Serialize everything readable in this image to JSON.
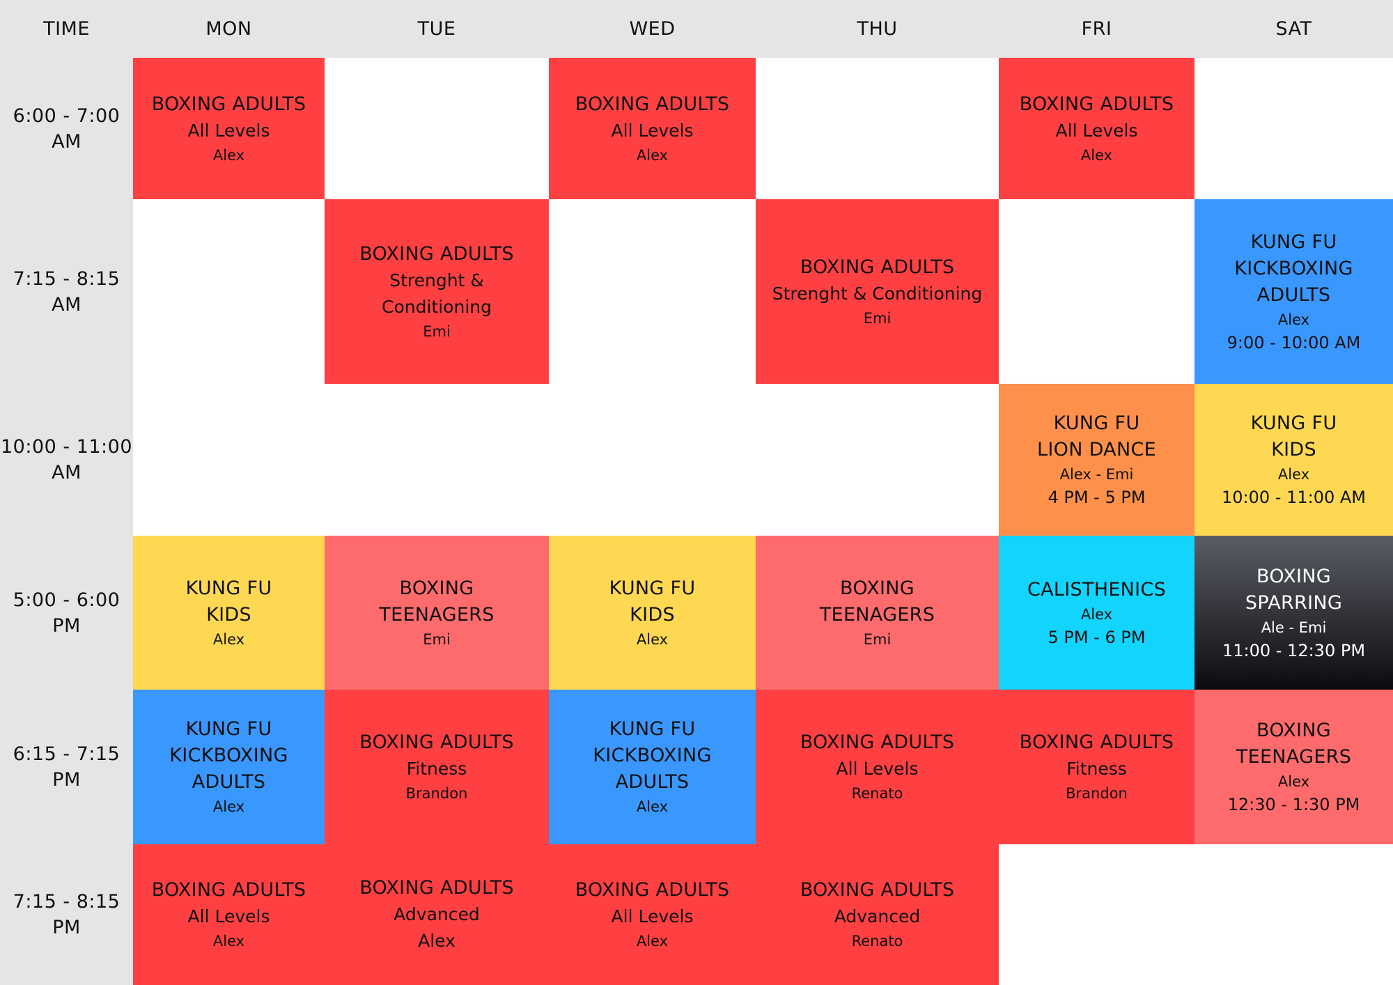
{
  "header": {
    "time_label": "TIME",
    "days": [
      "MON",
      "TUE",
      "WED",
      "THU",
      "FRI",
      "SAT"
    ]
  },
  "time_slots": [
    "6:00 - 7:00\nAM",
    "7:15 - 8:15\nAM",
    "10:00 - 11:00\nAM",
    "5:00 - 6:00\nPM",
    "6:15 - 7:15\nPM",
    "7:15 - 8:15\nPM"
  ],
  "colors": {
    "header_bg": "#e6e4e5",
    "boxing_adults": "#fe4042",
    "boxing_teenagers": "#fe6b6d",
    "kung_fu_kids": "#fed852",
    "kung_fu_kickboxing": "#3a97fd",
    "lion_dance": "#fd904a",
    "calisthenics": "#13d4fc",
    "sparring_top": "#5b5d66",
    "sparring_bottom": "#0c0c0f"
  },
  "classes": {
    "mon_0600": {
      "t1": "BOXING ADULTS",
      "t2": "All Levels",
      "t3": "Alex"
    },
    "wed_0600": {
      "t1": "BOXING ADULTS",
      "t2": "All Levels",
      "t3": "Alex"
    },
    "fri_0600": {
      "t1": "BOXING ADULTS",
      "t2": "All Levels",
      "t3": "Alex"
    },
    "tue_0715": {
      "t1": "BOXING ADULTS",
      "t2": "Strenght &\nConditioning",
      "t3": "Emi"
    },
    "thu_0715": {
      "t1": "BOXING ADULTS",
      "t2": "Strenght & Conditioning",
      "t3": "Emi"
    },
    "sat_0715": {
      "t1": "KUNG FU\nKICKBOXING\nADULTS",
      "t3": "Alex",
      "t4": "9:00 - 10:00 AM"
    },
    "fri_1000": {
      "t1": "KUNG FU\nLION DANCE",
      "t3": "Alex - Emi",
      "t4": "4 PM - 5 PM"
    },
    "sat_1000": {
      "t1": "KUNG FU\nKIDS",
      "t3": "Alex",
      "t4": "10:00 - 11:00 AM"
    },
    "mon_1700": {
      "t1": "KUNG FU\nKIDS",
      "t3": "Alex"
    },
    "tue_1700": {
      "t1": "BOXING\nTEENAGERS",
      "t3": "Emi"
    },
    "wed_1700": {
      "t1": "KUNG FU\nKIDS",
      "t3": "Alex"
    },
    "thu_1700": {
      "t1": "BOXING\nTEENAGERS",
      "t3": "Emi"
    },
    "fri_1700": {
      "t1": "CALISTHENICS",
      "t3": "Alex",
      "t4": "5 PM - 6 PM"
    },
    "sat_1700": {
      "t1": "BOXING\nSPARRING",
      "t3": "Ale - Emi",
      "t4": "11:00 - 12:30 PM"
    },
    "mon_1815": {
      "t1": "KUNG FU\nKICKBOXING\nADULTS",
      "t3": "Alex"
    },
    "tue_1815": {
      "t1": "BOXING ADULTS",
      "t2": "Fitness",
      "t3": "Brandon"
    },
    "wed_1815": {
      "t1": "KUNG FU\nKICKBOXING\nADULTS",
      "t3": "Alex"
    },
    "thu_1815": {
      "t1": "BOXING ADULTS",
      "t2": "All Levels",
      "t3": "Renato"
    },
    "fri_1815": {
      "t1": "BOXING ADULTS",
      "t2": "Fitness",
      "t3": "Brandon"
    },
    "sat_1815": {
      "t1": "BOXING\nTEENAGERS",
      "t3": "Alex",
      "t4": "12:30 - 1:30 PM"
    },
    "mon_1915": {
      "t1": "BOXING ADULTS",
      "t2": "All Levels",
      "t3": "Alex"
    },
    "tue_1915": {
      "t1": "BOXING ADULTS",
      "t2": "Advanced\nAlex"
    },
    "wed_1915": {
      "t1": "BOXING ADULTS",
      "t2": "All Levels",
      "t3": "Alex"
    },
    "thu_1915": {
      "t1": "BOXING ADULTS",
      "t2": "Advanced",
      "t3": "Renato"
    }
  }
}
